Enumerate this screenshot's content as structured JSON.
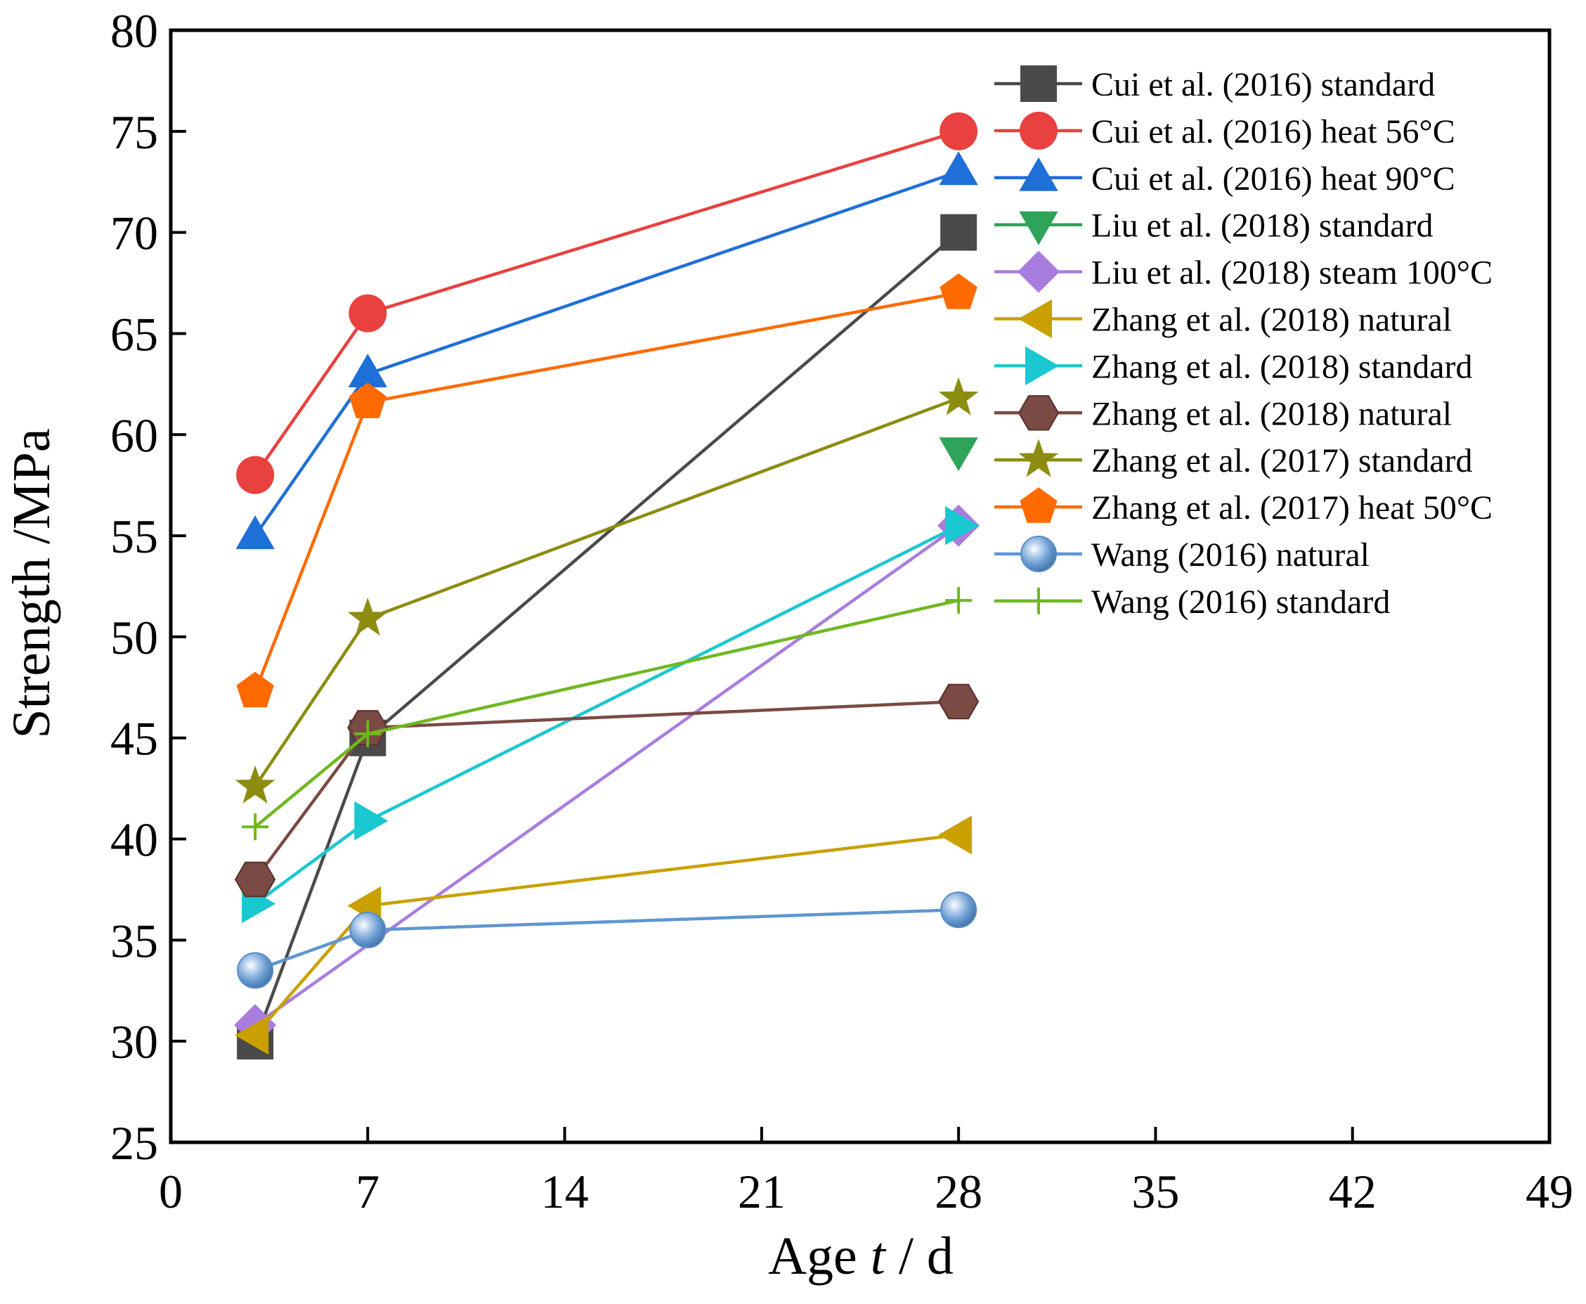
{
  "chart_data": {
    "type": "line",
    "title": "",
    "xlabel_prefix": "Age ",
    "xlabel_var": "t",
    "xlabel_suffix": " / d",
    "ylabel": "Strength /MPa",
    "xlim": [
      0,
      49
    ],
    "ylim": [
      25,
      80
    ],
    "xticks": [
      0,
      7,
      14,
      21,
      28,
      35,
      42,
      49
    ],
    "yticks": [
      25,
      30,
      35,
      40,
      45,
      50,
      55,
      60,
      65,
      70,
      75,
      80
    ],
    "legend_position": "top-right",
    "series": [
      {
        "name": "Cui et al. (2016)  standard",
        "marker": "square",
        "color": "#4a4a4a",
        "x": [
          3,
          7,
          28
        ],
        "y": [
          30,
          45,
          70
        ]
      },
      {
        "name": "Cui et al. (2016)  heat 56°C",
        "marker": "circle",
        "color": "#e8413f",
        "x": [
          3,
          7,
          28
        ],
        "y": [
          58,
          66,
          75
        ]
      },
      {
        "name": "Cui et al. (2016) heat 90°C",
        "marker": "triangle-up",
        "color": "#1f6fd8",
        "x": [
          3,
          7,
          28
        ],
        "y": [
          55,
          63,
          73
        ]
      },
      {
        "name": "Liu et al. (2018)  standard",
        "marker": "triangle-down",
        "color": "#2fa35a",
        "x": [
          28
        ],
        "y": [
          59.2
        ]
      },
      {
        "name": "Liu et al. (2018) steam 100°C",
        "marker": "diamond",
        "color": "#a97ce0",
        "x": [
          3,
          28
        ],
        "y": [
          30.8,
          55.5
        ]
      },
      {
        "name": "Zhang et al. (2018) natural",
        "marker": "triangle-left",
        "color": "#c9a000",
        "x": [
          3,
          7,
          28
        ],
        "y": [
          30.3,
          36.7,
          40.2
        ]
      },
      {
        "name": "Zhang et al. (2018) standard",
        "marker": "triangle-right",
        "color": "#19c8d0",
        "x": [
          3,
          7,
          28
        ],
        "y": [
          36.8,
          40.9,
          55.5
        ]
      },
      {
        "name": "Zhang et al. (2018) natural",
        "marker": "hexagon",
        "color": "#7a4a44",
        "x": [
          3,
          7,
          28
        ],
        "y": [
          38,
          45.5,
          46.8
        ]
      },
      {
        "name": "Zhang et al. (2017) standard",
        "marker": "star",
        "color": "#8c8c10",
        "x": [
          3,
          7,
          28
        ],
        "y": [
          42.6,
          50.9,
          61.8
        ]
      },
      {
        "name": "Zhang et al. (2017) heat 50°C",
        "marker": "pentagon",
        "color": "#ff6a00",
        "x": [
          3,
          7,
          28
        ],
        "y": [
          47.3,
          61.6,
          67
        ]
      },
      {
        "name": "Wang (2016) natural",
        "marker": "sphere",
        "color": "#5f96d0",
        "x": [
          3,
          7,
          28
        ],
        "y": [
          33.5,
          35.5,
          36.5
        ]
      },
      {
        "name": "Wang (2016)  standard",
        "marker": "plus",
        "color": "#6fb81f",
        "x": [
          3,
          7,
          28
        ],
        "y": [
          40.6,
          45.2,
          51.8
        ]
      }
    ]
  }
}
